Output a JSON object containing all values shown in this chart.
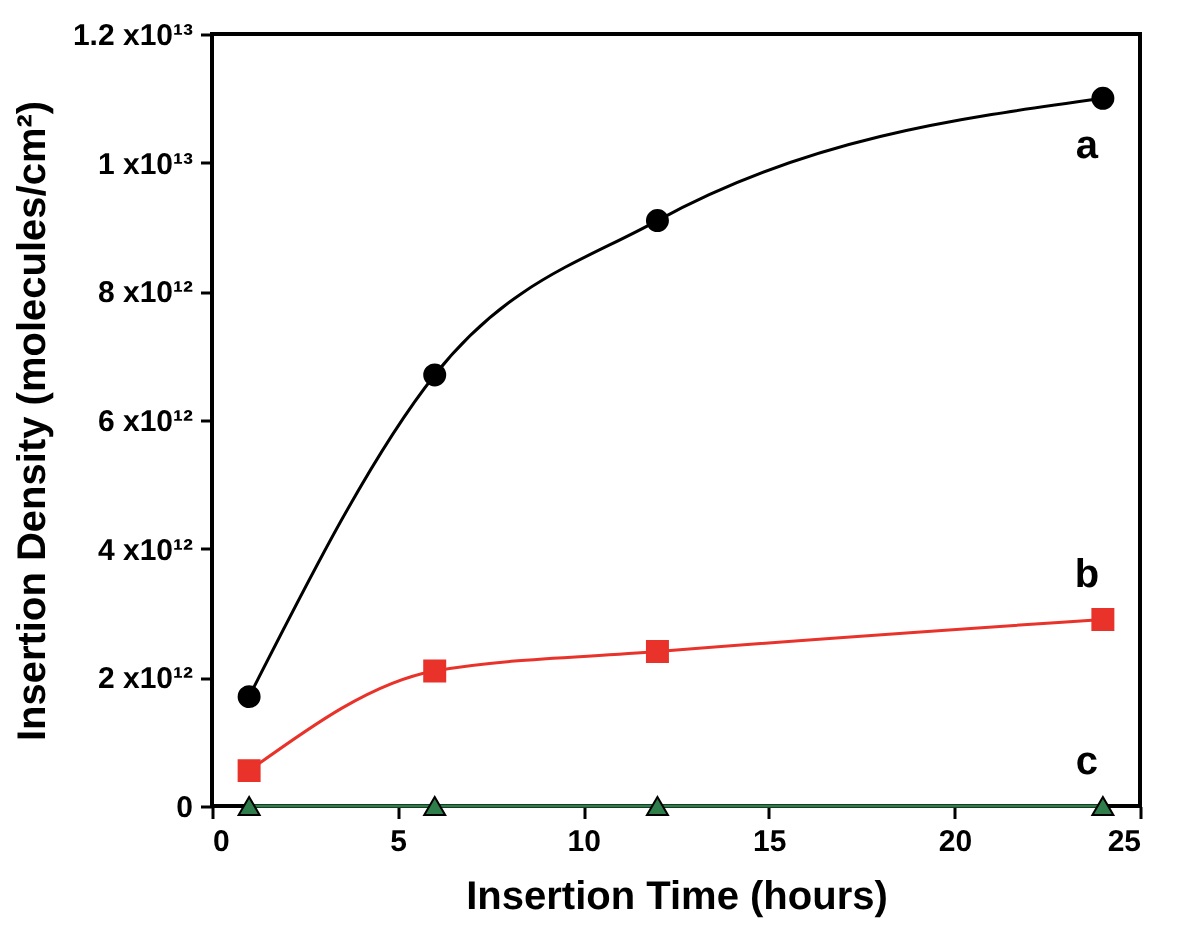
{
  "chart_data": {
    "type": "line",
    "xlabel": "Insertion Time (hours)",
    "ylabel": "Insertion Density (molecules/cm²)",
    "x": [
      1,
      6,
      12,
      24
    ],
    "series": [
      {
        "name": "a",
        "color": "#000000",
        "marker": "circle",
        "values": [
          1700000000000.0,
          6700000000000.0,
          9100000000000.0,
          11000000000000.0
        ]
      },
      {
        "name": "b",
        "color": "#e8322a",
        "marker": "square",
        "values": [
          550000000000.0,
          2100000000000.0,
          2400000000000.0,
          2900000000000.0
        ]
      },
      {
        "name": "c",
        "color": "#2e7d4a",
        "marker": "triangle",
        "values": [
          0,
          0,
          0,
          0
        ]
      }
    ],
    "xlim": [
      0,
      25
    ],
    "xticks": [
      0,
      5,
      10,
      15,
      20,
      25
    ],
    "ylim": [
      0,
      12000000000000.0
    ],
    "yticks": [
      0,
      {
        "value": 2000000000000.0,
        "label": "2 x10¹²"
      },
      {
        "value": 4000000000000.0,
        "label": "4 x10¹²"
      },
      {
        "value": 6000000000000.0,
        "label": "6 x10¹²"
      },
      {
        "value": 8000000000000.0,
        "label": "8 x10¹²"
      },
      {
        "value": 10000000000000.0,
        "label": "1 x10¹³"
      },
      {
        "value": 12000000000000.0,
        "label": "1.2 x10¹³"
      }
    ],
    "grid": false,
    "line_style": "solid"
  }
}
